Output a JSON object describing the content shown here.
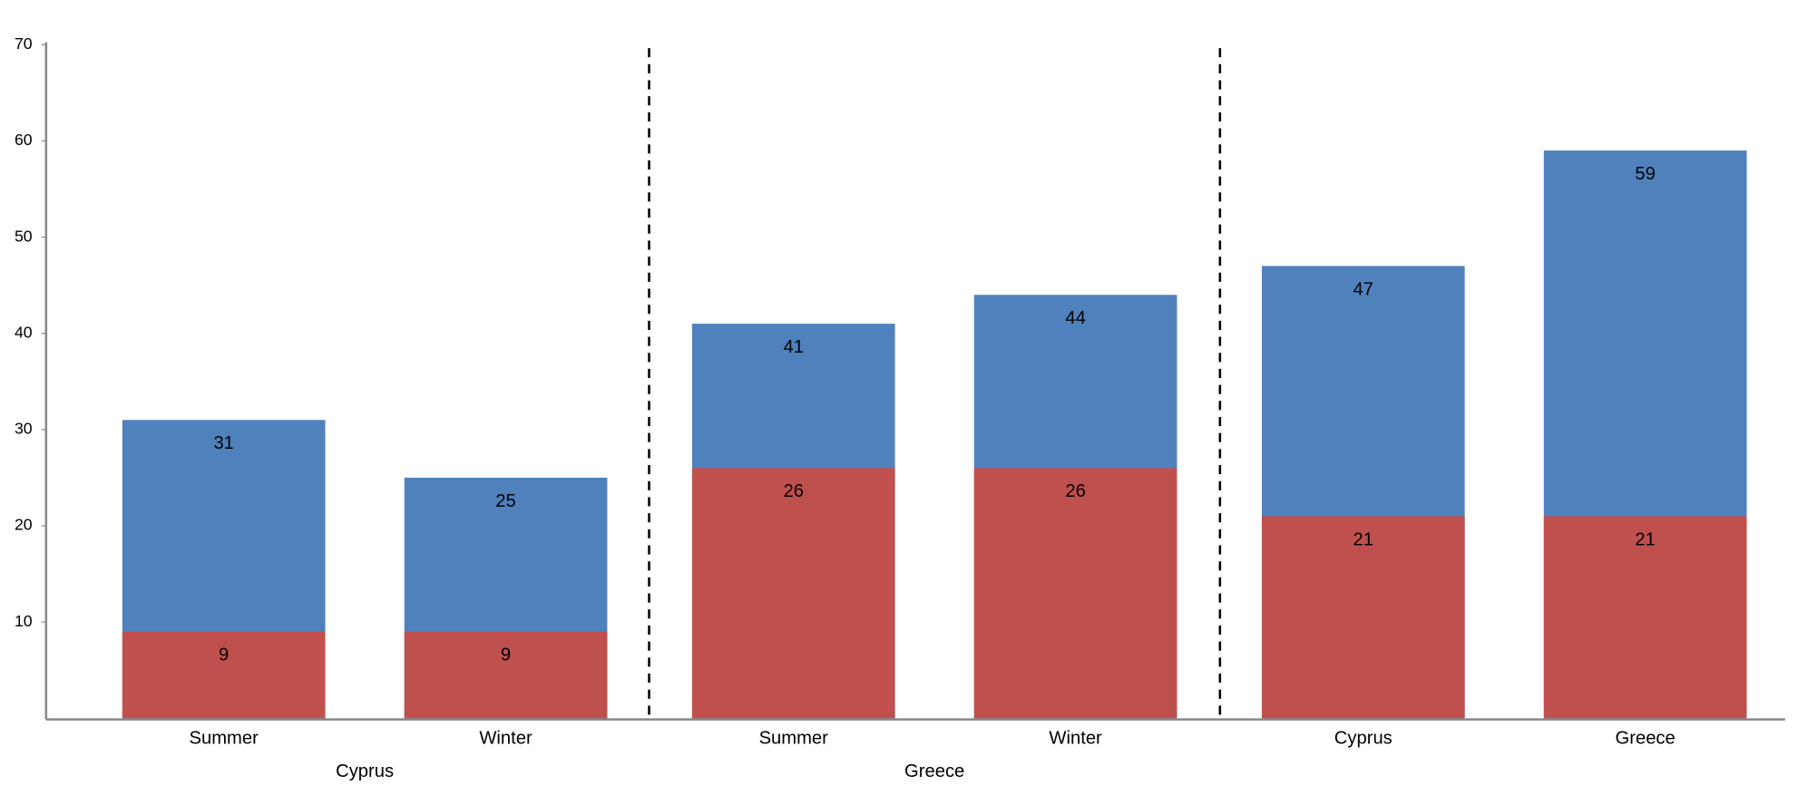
{
  "chart_data": {
    "type": "bar",
    "categories": [
      "Summer",
      "Winter",
      "Summer",
      "Winter",
      "Cyprus",
      "Greece"
    ],
    "groups": [
      "Cyprus",
      "Greece",
      null
    ],
    "series": [
      {
        "color": "#4f81bd",
        "values": [
          31,
          25,
          41,
          44,
          47,
          59
        ]
      },
      {
        "color": "#c0504d",
        "values": [
          9,
          9,
          26,
          26,
          21,
          21
        ]
      }
    ],
    "ylim": [
      0,
      70
    ],
    "yticks": [
      10,
      20,
      30,
      40,
      50,
      60,
      70
    ],
    "grid": false
  }
}
